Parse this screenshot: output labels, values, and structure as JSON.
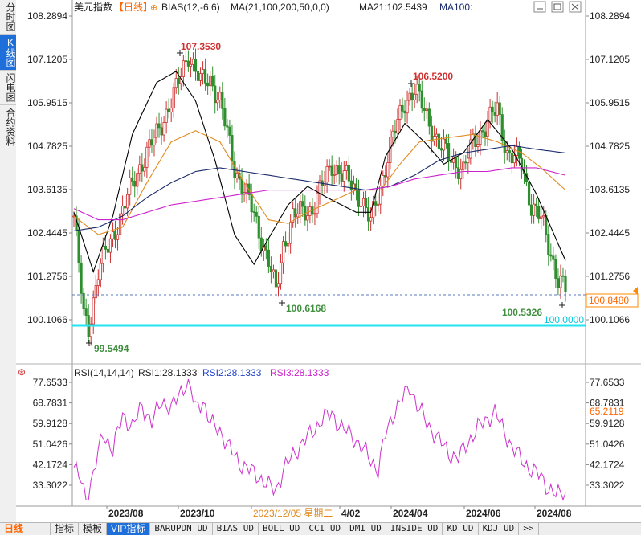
{
  "side_tabs": [
    {
      "label": "分时图",
      "active": false
    },
    {
      "label": "K线图",
      "active": true
    },
    {
      "label": "闪电图",
      "active": false
    },
    {
      "label": "合约资料",
      "active": false
    }
  ],
  "header": {
    "instrument": "美元指数",
    "period": "【日线】",
    "bias_label": "BIAS(12,-6,6)",
    "ma_label": "MA(21,100,200,50,0,0)",
    "ma21_label": "MA21:102.5439",
    "ma100_label": "MA100:"
  },
  "rsi_header": {
    "label": "RSI(14,14,14)",
    "rsi1": "RSI1:28.1333",
    "rsi2": "RSI2:28.1333",
    "rsi3": "RSI3:28.1333"
  },
  "colors": {
    "up": "#d03030",
    "down": "#2f8f2f",
    "ma_black": "#000000",
    "ma_orange": "#e08a1e",
    "ma_navy": "#1a2a6c",
    "ma_magenta": "#cc22cc",
    "cyan_line": "#22e5f0",
    "rsi": "#cc33cc",
    "accent_blue": "#1e6fd9"
  },
  "chart_data": [
    {
      "type": "candlestick",
      "title": "美元指数 【日线】",
      "y_ticks": [
        "108.2894",
        "107.1205",
        "105.9515",
        "104.7825",
        "103.6135",
        "102.4445",
        "101.2756",
        "100.1066"
      ],
      "ylim": [
        99.4,
        108.4
      ],
      "x_ticks": [
        "2023/08",
        "2023/10",
        "2023/12/05 星期二",
        "4/02",
        "2024/04",
        "2024/06",
        "2024/08"
      ],
      "annotations": [
        {
          "text": "107.3530",
          "kind": "high"
        },
        {
          "text": "106.5200",
          "kind": "high"
        },
        {
          "text": "100.6168",
          "kind": "low"
        },
        {
          "text": "99.5494",
          "kind": "low"
        },
        {
          "text": "100.5326",
          "kind": "low"
        }
      ],
      "last_price": "100.8480",
      "horizontal_line": {
        "value": "100.0000"
      },
      "close_anchors": [
        {
          "x": 0,
          "y": 102.9
        },
        {
          "x": 4,
          "y": 100.2
        },
        {
          "x": 6,
          "y": 99.9
        },
        {
          "x": 10,
          "y": 101.4
        },
        {
          "x": 18,
          "y": 102.7
        },
        {
          "x": 26,
          "y": 104.1
        },
        {
          "x": 34,
          "y": 105.1
        },
        {
          "x": 42,
          "y": 106.3
        },
        {
          "x": 47,
          "y": 107.3
        },
        {
          "x": 52,
          "y": 106.5
        },
        {
          "x": 56,
          "y": 106.6
        },
        {
          "x": 60,
          "y": 106.0
        },
        {
          "x": 66,
          "y": 104.2
        },
        {
          "x": 72,
          "y": 103.3
        },
        {
          "x": 80,
          "y": 101.7
        },
        {
          "x": 83,
          "y": 100.8
        },
        {
          "x": 86,
          "y": 102.1
        },
        {
          "x": 90,
          "y": 102.9
        },
        {
          "x": 98,
          "y": 103.1
        },
        {
          "x": 106,
          "y": 104.3
        },
        {
          "x": 112,
          "y": 103.9
        },
        {
          "x": 118,
          "y": 103.4
        },
        {
          "x": 122,
          "y": 102.7
        },
        {
          "x": 126,
          "y": 103.7
        },
        {
          "x": 130,
          "y": 104.8
        },
        {
          "x": 136,
          "y": 106.0
        },
        {
          "x": 140,
          "y": 106.3
        },
        {
          "x": 145,
          "y": 105.6
        },
        {
          "x": 150,
          "y": 104.8
        },
        {
          "x": 156,
          "y": 104.4
        },
        {
          "x": 160,
          "y": 104.1
        },
        {
          "x": 164,
          "y": 104.9
        },
        {
          "x": 170,
          "y": 105.4
        },
        {
          "x": 174,
          "y": 105.8
        },
        {
          "x": 178,
          "y": 104.6
        },
        {
          "x": 184,
          "y": 104.3
        },
        {
          "x": 188,
          "y": 103.2
        },
        {
          "x": 192,
          "y": 102.8
        },
        {
          "x": 196,
          "y": 101.9
        },
        {
          "x": 199,
          "y": 101.2
        },
        {
          "x": 202,
          "y": 100.9
        }
      ],
      "ma_series": [
        {
          "color": "ma_black",
          "values": [
            [
              0,
              103.0
            ],
            [
              8,
              101.4
            ],
            [
              16,
              102.9
            ],
            [
              24,
              105.1
            ],
            [
              34,
              106.5
            ],
            [
              42,
              106.8
            ],
            [
              50,
              106.0
            ],
            [
              58,
              104.4
            ],
            [
              66,
              102.4
            ],
            [
              74,
              101.6
            ],
            [
              80,
              102.3
            ],
            [
              88,
              103.2
            ],
            [
              96,
              103.7
            ],
            [
              104,
              103.4
            ],
            [
              110,
              103.2
            ],
            [
              116,
              103.0
            ],
            [
              122,
              103.0
            ],
            [
              128,
              104.5
            ],
            [
              136,
              105.4
            ],
            [
              144,
              104.9
            ],
            [
              152,
              104.3
            ],
            [
              160,
              104.6
            ],
            [
              170,
              105.5
            ],
            [
              180,
              104.7
            ],
            [
              190,
              103.5
            ],
            [
              198,
              102.3
            ],
            [
              202,
              101.7
            ]
          ]
        },
        {
          "color": "ma_orange",
          "values": [
            [
              0,
              102.9
            ],
            [
              10,
              102.4
            ],
            [
              20,
              102.6
            ],
            [
              30,
              103.8
            ],
            [
              40,
              104.9
            ],
            [
              50,
              105.2
            ],
            [
              60,
              104.9
            ],
            [
              70,
              103.8
            ],
            [
              80,
              102.8
            ],
            [
              88,
              102.7
            ],
            [
              96,
              103.0
            ],
            [
              106,
              103.3
            ],
            [
              116,
              103.6
            ],
            [
              126,
              103.6
            ],
            [
              134,
              104.3
            ],
            [
              142,
              104.9
            ],
            [
              152,
              105.0
            ],
            [
              164,
              105.1
            ],
            [
              174,
              104.9
            ],
            [
              184,
              104.6
            ],
            [
              192,
              104.2
            ],
            [
              202,
              103.6
            ]
          ]
        },
        {
          "color": "ma_navy",
          "values": [
            [
              0,
              102.5
            ],
            [
              10,
              102.6
            ],
            [
              20,
              102.9
            ],
            [
              30,
              103.4
            ],
            [
              40,
              103.8
            ],
            [
              50,
              104.1
            ],
            [
              60,
              104.2
            ],
            [
              70,
              104.1
            ],
            [
              80,
              104.0
            ],
            [
              90,
              103.9
            ],
            [
              100,
              103.8
            ],
            [
              110,
              103.7
            ],
            [
              120,
              103.6
            ],
            [
              130,
              103.7
            ],
            [
              140,
              104.0
            ],
            [
              150,
              104.4
            ],
            [
              160,
              104.6
            ],
            [
              170,
              104.7
            ],
            [
              180,
              104.8
            ],
            [
              190,
              104.7
            ],
            [
              202,
              104.6
            ]
          ]
        },
        {
          "color": "ma_magenta",
          "values": [
            [
              0,
              103.1
            ],
            [
              10,
              102.8
            ],
            [
              20,
              102.8
            ],
            [
              30,
              103.0
            ],
            [
              40,
              103.2
            ],
            [
              50,
              103.3
            ],
            [
              60,
              103.4
            ],
            [
              70,
              103.5
            ],
            [
              80,
              103.6
            ],
            [
              90,
              103.6
            ],
            [
              100,
              103.6
            ],
            [
              110,
              103.6
            ],
            [
              120,
              103.6
            ],
            [
              130,
              103.7
            ],
            [
              140,
              103.9
            ],
            [
              150,
              104.0
            ],
            [
              160,
              104.1
            ],
            [
              170,
              104.1
            ],
            [
              180,
              104.2
            ],
            [
              190,
              104.2
            ],
            [
              202,
              104.0
            ]
          ]
        }
      ]
    },
    {
      "type": "line",
      "title": "RSI(14,14,14)",
      "y_ticks": [
        "77.6533",
        "68.7831",
        "59.9128",
        "51.0426",
        "42.1724",
        "33.3022"
      ],
      "ylim": [
        26.0,
        80.0
      ],
      "current_value": "65.2119",
      "series": [
        {
          "color": "rsi",
          "values": [
            [
              0,
              41
            ],
            [
              3,
              35
            ],
            [
              5,
              27
            ],
            [
              8,
              38
            ],
            [
              12,
              56
            ],
            [
              16,
              48
            ],
            [
              20,
              64
            ],
            [
              24,
              58
            ],
            [
              28,
              68
            ],
            [
              32,
              60
            ],
            [
              36,
              70
            ],
            [
              40,
              66
            ],
            [
              44,
              74
            ],
            [
              47,
              79
            ],
            [
              50,
              66
            ],
            [
              53,
              70
            ],
            [
              56,
              60
            ],
            [
              60,
              57
            ],
            [
              64,
              49
            ],
            [
              68,
              43
            ],
            [
              72,
              40
            ],
            [
              76,
              37
            ],
            [
              80,
              33
            ],
            [
              83,
              31
            ],
            [
              86,
              40
            ],
            [
              90,
              46
            ],
            [
              94,
              52
            ],
            [
              98,
              56
            ],
            [
              102,
              62
            ],
            [
              106,
              64
            ],
            [
              110,
              58
            ],
            [
              114,
              55
            ],
            [
              118,
              50
            ],
            [
              122,
              44
            ],
            [
              125,
              40
            ],
            [
              128,
              55
            ],
            [
              132,
              66
            ],
            [
              136,
              72
            ],
            [
              138,
              76
            ],
            [
              141,
              68
            ],
            [
              145,
              60
            ],
            [
              150,
              53
            ],
            [
              154,
              47
            ],
            [
              158,
              45
            ],
            [
              162,
              52
            ],
            [
              166,
              58
            ],
            [
              170,
              62
            ],
            [
              173,
              65
            ],
            [
              176,
              58
            ],
            [
              180,
              50
            ],
            [
              184,
              44
            ],
            [
              188,
              40
            ],
            [
              192,
              37
            ],
            [
              195,
              32
            ],
            [
              198,
              29
            ],
            [
              202,
              30
            ]
          ]
        }
      ]
    }
  ],
  "bottom_tabs": [
    {
      "label": "日线",
      "kind": "period"
    },
    {
      "label": "指标",
      "active": false
    },
    {
      "label": "模板",
      "active": false
    },
    {
      "label": "VIP指标",
      "active": true
    },
    {
      "label": "BARUPDN_UD",
      "active": false
    },
    {
      "label": "BIAS_UD",
      "active": false
    },
    {
      "label": "BOLL_UD",
      "active": false
    },
    {
      "label": "CCI_UD",
      "active": false
    },
    {
      "label": "DMI_UD",
      "active": false
    },
    {
      "label": "INSIDE_UD",
      "active": false
    },
    {
      "label": "KD_UD",
      "active": false
    },
    {
      "label": "KDJ_UD",
      "active": false
    },
    {
      "label": ">>",
      "active": false
    }
  ]
}
